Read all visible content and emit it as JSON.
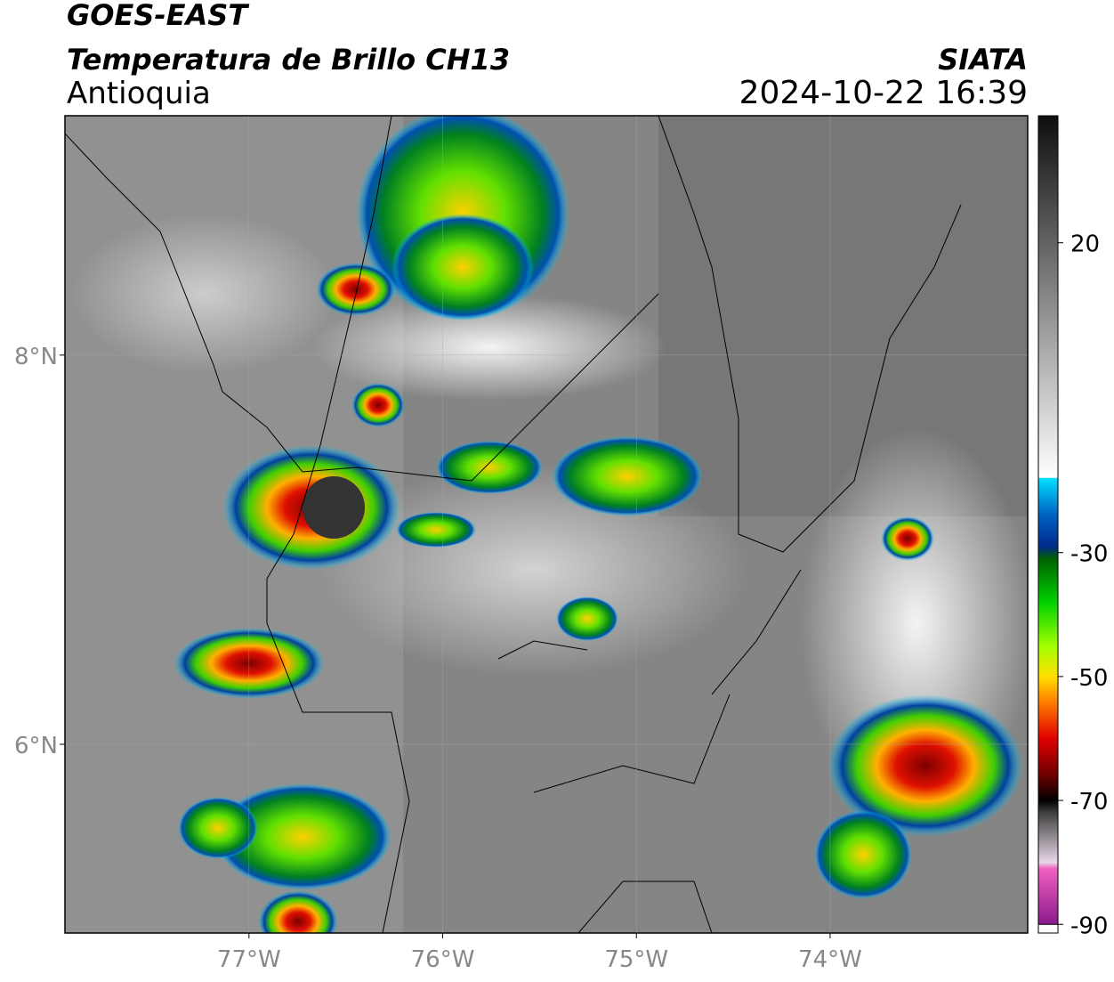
{
  "header": {
    "title": "GOES-EAST",
    "subtitle": "Temperatura de Brillo CH13",
    "region": "Antioquia",
    "source": "SIATA",
    "timestamp": "2024-10-22 16:39"
  },
  "map": {
    "xlim": [
      -77.95,
      -72.98
    ],
    "ylim": [
      5.03,
      9.23
    ],
    "xticks": [
      {
        "value": -77,
        "label": "77°W"
      },
      {
        "value": -76,
        "label": "76°W"
      },
      {
        "value": -75,
        "label": "75°W"
      },
      {
        "value": -74,
        "label": "74°W"
      }
    ],
    "yticks": [
      {
        "value": 8,
        "label": "8°N"
      },
      {
        "value": 6,
        "label": "6°N"
      }
    ],
    "grid": true
  },
  "colorbar": {
    "lim": [
      -91.4,
      40.5
    ],
    "ticks": [
      20,
      -30,
      -50,
      -70,
      -90
    ],
    "stops": [
      {
        "value": -90,
        "color": "#8b1a8b"
      },
      {
        "value": -81,
        "color": "#f060c0"
      },
      {
        "value": -80,
        "color": "#e8d8e8"
      },
      {
        "value": -72,
        "color": "#404040"
      },
      {
        "value": -70,
        "color": "#000000"
      },
      {
        "value": -66,
        "color": "#6a0000"
      },
      {
        "value": -60,
        "color": "#e00000"
      },
      {
        "value": -54,
        "color": "#ff8000"
      },
      {
        "value": -50,
        "color": "#ffe000"
      },
      {
        "value": -45,
        "color": "#a0ff00"
      },
      {
        "value": -38,
        "color": "#00d000"
      },
      {
        "value": -31,
        "color": "#006000"
      },
      {
        "value": -29,
        "color": "#002a8a"
      },
      {
        "value": -24,
        "color": "#0060c0"
      },
      {
        "value": -18,
        "color": "#00e0ff"
      },
      {
        "value": -17.9,
        "color": "#ffffff"
      },
      {
        "value": 40,
        "color": "#101010"
      }
    ]
  }
}
